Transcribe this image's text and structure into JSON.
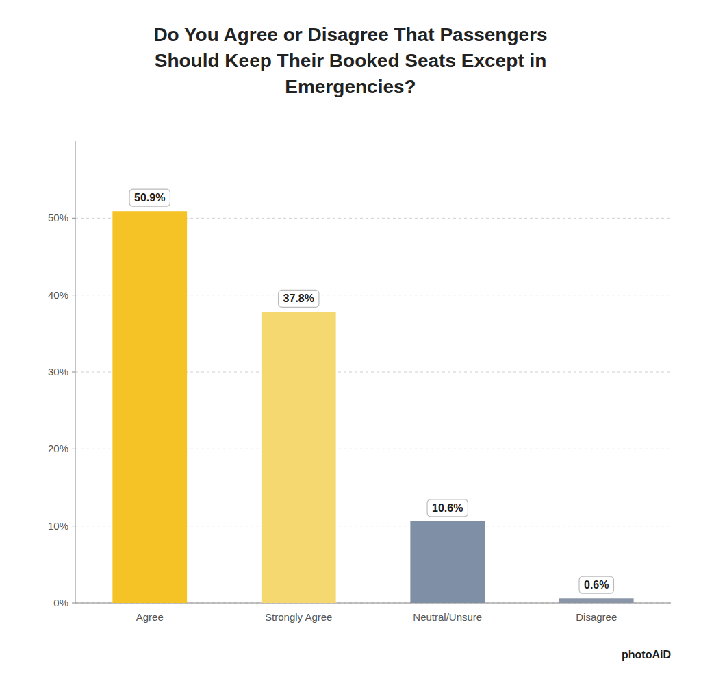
{
  "chart_data": {
    "type": "bar",
    "title": "Do You Agree or Disagree That Passengers\nShould Keep Their Booked Seats Except in\nEmergencies?",
    "categories": [
      "Agree",
      "Strongly Agree",
      "Neutral/Unsure",
      "Disagree"
    ],
    "values": [
      50.9,
      37.8,
      10.6,
      0.6
    ],
    "value_labels": [
      "50.9%",
      "37.8%",
      "10.6%",
      "0.6%"
    ],
    "data_labels": true,
    "colors": [
      "#F5C325",
      "#F5D970",
      "#7F8FA6",
      "#8A96A8"
    ],
    "ylim": [
      0,
      60
    ],
    "yticks": [
      {
        "value": 0,
        "label": "0%"
      },
      {
        "value": 10,
        "label": "10%"
      },
      {
        "value": 20,
        "label": "20%"
      },
      {
        "value": 30,
        "label": "30%"
      },
      {
        "value": 40,
        "label": "40%"
      },
      {
        "value": 50,
        "label": "50%"
      }
    ],
    "grid": true,
    "annotations": [
      "photoAiD"
    ]
  }
}
